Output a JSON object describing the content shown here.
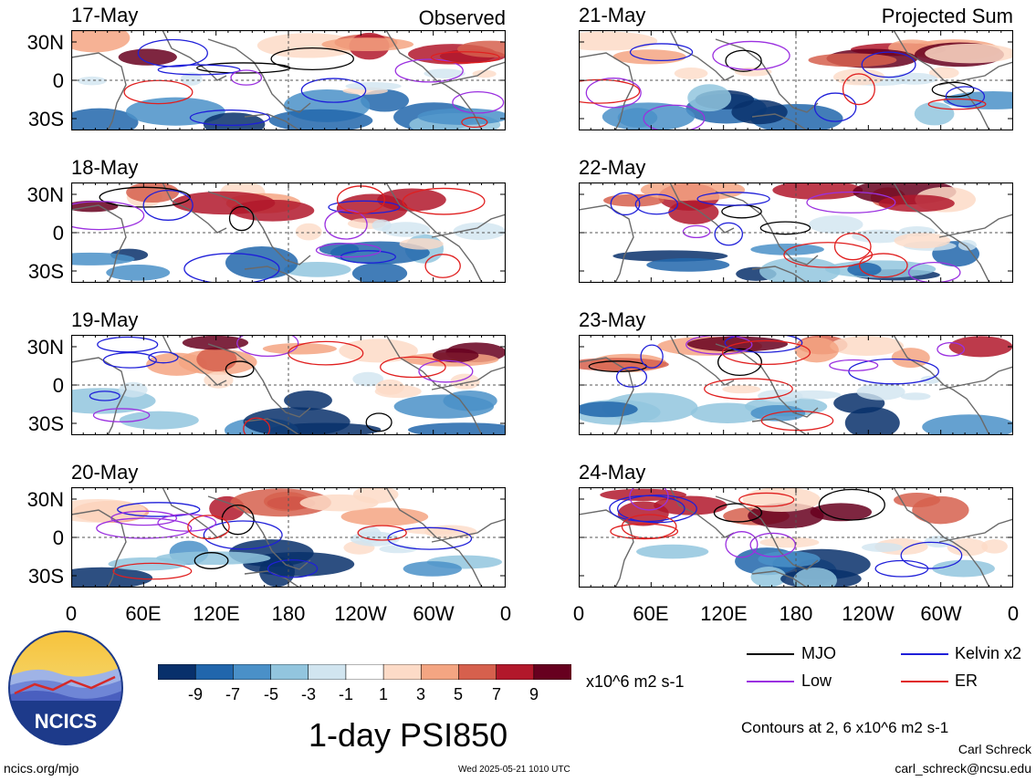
{
  "left_column": {
    "corner_label": "Observed",
    "panels": [
      {
        "date": "17-May"
      },
      {
        "date": "18-May"
      },
      {
        "date": "19-May"
      },
      {
        "date": "20-May"
      }
    ]
  },
  "right_column": {
    "corner_label": "Projected Sum",
    "panels": [
      {
        "date": "21-May"
      },
      {
        "date": "22-May"
      },
      {
        "date": "23-May"
      },
      {
        "date": "24-May"
      }
    ]
  },
  "lat_labels": [
    "30N",
    "0",
    "30S"
  ],
  "lon_labels": [
    "0",
    "60E",
    "120E",
    "180",
    "120W",
    "60W",
    "0"
  ],
  "colorbar": {
    "labels": [
      "-9",
      "-7",
      "-5",
      "-3",
      "-1",
      "1",
      "3",
      "5",
      "7",
      "9"
    ],
    "colors": [
      "#08306b",
      "#2166ac",
      "#4a90c8",
      "#92c5de",
      "#d1e5f0",
      "#ffffff",
      "#fddbc7",
      "#f4a582",
      "#d6604d",
      "#b2182b",
      "#67001f"
    ],
    "units": "x10^6 m2 s-1"
  },
  "legend": {
    "items": [
      {
        "label": "MJO",
        "color": "#000000"
      },
      {
        "label": "Kelvin x2",
        "color": "#1f1fd9"
      },
      {
        "label": "Low",
        "color": "#9b30e0"
      },
      {
        "label": "ER",
        "color": "#e01f1f"
      }
    ]
  },
  "title": "1-day PSI850",
  "contour_note": "Contours at 2, 6 x10^6 m2 s-1",
  "author": "Carl Schreck",
  "email": "carl_schreck@ncsu.edu",
  "website": "ncics.org/mjo",
  "timestamp": "Wed 2025-05-21 1010 UTC",
  "logo_text": "NCICS"
}
